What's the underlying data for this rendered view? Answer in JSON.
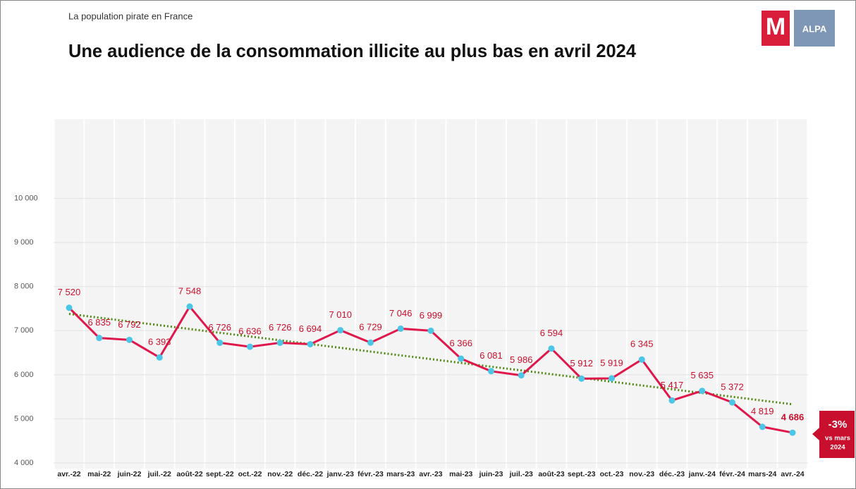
{
  "chart_data": {
    "type": "line",
    "subtitle": "La population pirate en France",
    "title": "Une audience de la consommation illicite au plus bas en avril 2024",
    "logos": [
      "M",
      "ALPA"
    ],
    "categories": [
      "avr.-22",
      "mai-22",
      "juin-22",
      "juil.-22",
      "août-22",
      "sept.-22",
      "oct.-22",
      "nov.-22",
      "déc.-22",
      "janv.-23",
      "févr.-23",
      "mars-23",
      "avr.-23",
      "mai-23",
      "juin-23",
      "juil.-23",
      "août-23",
      "sept.-23",
      "oct.-23",
      "nov.-23",
      "déc.-23",
      "janv.-24",
      "févr.-24",
      "mars-24",
      "avr.-24"
    ],
    "series": [
      {
        "color": "#e0174a",
        "marker_color": "#4cc6e6",
        "values": [
          7520,
          6835,
          6792,
          6393,
          7548,
          6726,
          6636,
          6726,
          6694,
          7010,
          6729,
          7046,
          6999,
          6366,
          6081,
          5986,
          6594,
          5912,
          5919,
          6345,
          5417,
          5635,
          5372,
          4819,
          4686
        ],
        "value_labels": [
          "7 520",
          "6 835",
          "6 792",
          "6 393",
          "7 548",
          "6 726",
          "6 636",
          "6 726",
          "6 694",
          "7 010",
          "6 729",
          "7 046",
          "6 999",
          "6 366",
          "6 081",
          "5 986",
          "6 594",
          "5 912",
          "5 919",
          "6 345",
          "5 417",
          "5 635",
          "5 372",
          "4 819",
          "4 686"
        ]
      }
    ],
    "trend": {
      "color": "#4f8a10",
      "values": [
        7380,
        5330
      ]
    },
    "ylim": [
      4000,
      11800
    ],
    "yticks": [
      {
        "value": 4000,
        "label": "4 000"
      },
      {
        "value": 5000,
        "label": "5 000"
      },
      {
        "value": 6000,
        "label": "6 000"
      },
      {
        "value": 7000,
        "label": "7 000"
      },
      {
        "value": 8000,
        "label": "8 000"
      },
      {
        "value": 9000,
        "label": "9 000"
      },
      {
        "value": 10000,
        "label": "10 000"
      }
    ],
    "grid": true,
    "annotation": {
      "change": "-3%",
      "note_lines": [
        "vs mars",
        "2024"
      ]
    }
  }
}
